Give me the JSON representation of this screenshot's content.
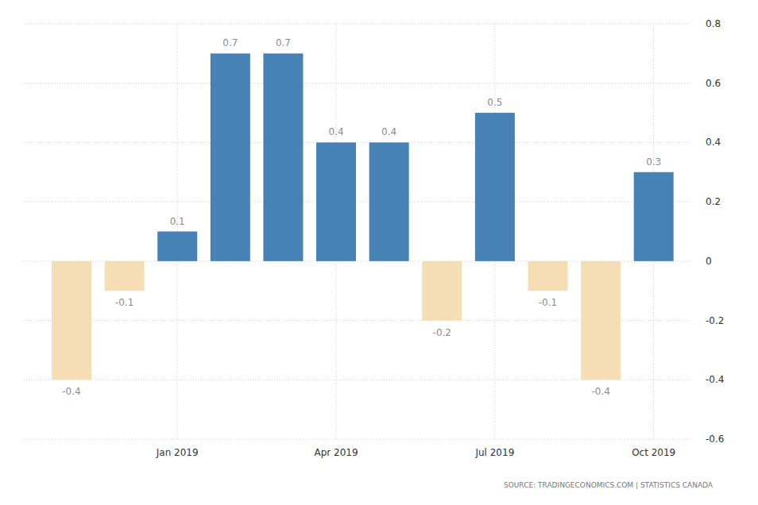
{
  "chart_data": {
    "type": "bar",
    "categories": [
      null,
      null,
      "Jan 2019",
      null,
      null,
      "Apr 2019",
      null,
      null,
      "Jul 2019",
      null,
      null,
      "Oct 2019"
    ],
    "values": [
      -0.4,
      -0.1,
      0.1,
      0.7,
      0.7,
      0.4,
      0.4,
      -0.2,
      0.5,
      -0.1,
      -0.4,
      0.3
    ],
    "colors": [
      "#f5deb3",
      "#f5deb3",
      "#4682b4",
      "#4682b4",
      "#4682b4",
      "#4682b4",
      "#4682b4",
      "#f5deb3",
      "#4682b4",
      "#f5deb3",
      "#f5deb3",
      "#4682b4"
    ],
    "ylim": [
      -0.6,
      0.8
    ],
    "yticks": [
      -0.6,
      -0.4,
      -0.2,
      0,
      0.2,
      0.4,
      0.6,
      0.8
    ],
    "grid": true,
    "data_labels": true,
    "source": "SOURCE: TRADINGECONOMICS.COM | STATISTICS CANADA"
  }
}
